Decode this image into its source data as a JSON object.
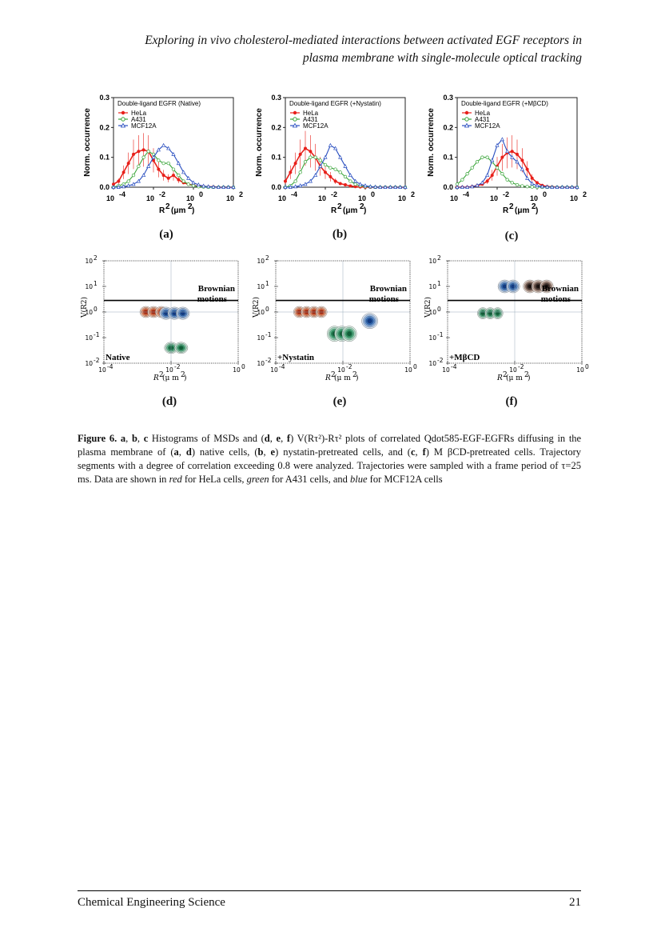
{
  "header": {
    "title_line1": "Exploring in vivo cholesterol-mediated interactions between activated EGF receptors in",
    "title_line2": "plasma membrane with single-molecule optical tracking"
  },
  "colors": {
    "hela": "#e8201a",
    "a431": "#3aa53a",
    "mcf12a": "#2a4fc0"
  },
  "histograms": [
    {
      "label": "(a)",
      "legend_title": "Double-ligand EGFR (Native)"
    },
    {
      "label": "(b)",
      "legend_title": "Double-ligand EGFR (+Nystatin)"
    },
    {
      "label": "(c)",
      "legend_title": "Double-ligand EGFR (+MβCD)"
    }
  ],
  "legend_entries": [
    "HeLa",
    "A431",
    "MCF12A"
  ],
  "hist_axes": {
    "ylabel": "Norm. occurrence",
    "xlabel": "R",
    "xlabel_sup": "2",
    "xlabel_unit": "(μm",
    "xlabel_unit_sup": "2",
    "xlabel_close": ")",
    "yticks": [
      "0.3",
      "0.2",
      "0.1",
      "0.0"
    ],
    "xtick_base": "10",
    "xtick_exps": [
      "-4",
      "-2",
      "0",
      "2"
    ]
  },
  "contours": [
    {
      "label": "(d)",
      "condition": "Native",
      "brownian_1": "Brownian",
      "brownian_2": "motions"
    },
    {
      "label": "(e)",
      "condition": "+Nystatin",
      "brownian_1": "Brownian",
      "brownian_2": "motions"
    },
    {
      "label": "(f)",
      "condition": "+MβCD",
      "brownian_1": "Brownian",
      "brownian_2": "motions"
    }
  ],
  "contour_axes": {
    "ylabel": "V(R",
    "ylabel_sup": "2",
    "ylabel_close": ")",
    "xlabel": "R",
    "xlabel_sup": "2",
    "xlabel_unit": "(μ m",
    "xlabel_unit_sup": "2",
    "xlabel_close": ")",
    "tick_base": "10",
    "ytick_exps": [
      "2",
      "1",
      "0",
      "-1",
      "-2"
    ],
    "xtick_exps": [
      "-4",
      "-2",
      "0"
    ]
  },
  "caption": {
    "fig_label": "Figure 6.",
    "a": "a",
    "b": "b",
    "c": "c",
    "d": "d",
    "e": "e",
    "f": "f",
    "part1": "Histograms of MSDs and (",
    "part2": ") V(Rτ²)-Rτ² plots of correlated Qdot585-EGF-EGFRs diffusing in the plasma membrane of (",
    "part3": ") native cells, (",
    "part4": ") nystatin-pretreated cells, and (",
    "part5": ") M βCD-pretreated cells. Trajectory segments with a degree of correlation exceeding 0.8 were analyzed. Trajectories were sampled with a frame period of τ=25 ms. Data are shown in",
    "red": "red",
    "part6": "for HeLa cells,",
    "green": "green",
    "part7": "for A431 cells, and",
    "blue": "blue",
    "part8": "for MCF12A cells"
  },
  "footer": {
    "journal": "Chemical Engineering Science",
    "page": "21"
  },
  "chart_data": [
    {
      "type": "line",
      "panel": "a",
      "title": "Double-ligand EGFR (Native)",
      "xlabel": "R2 (μm2)",
      "ylabel": "Norm. occurrence",
      "xscale": "log",
      "xlim": [
        0.0001,
        100
      ],
      "ylim": [
        0,
        0.3
      ],
      "x": [
        0.0001,
        0.00018,
        0.00032,
        0.00056,
        0.001,
        0.0018,
        0.0032,
        0.0056,
        0.01,
        0.018,
        0.032,
        0.056,
        0.1,
        0.18,
        0.32,
        0.56,
        1,
        1.8,
        3.2,
        5.6,
        10,
        18,
        32,
        56,
        100
      ],
      "series": [
        {
          "name": "HeLa",
          "values": [
            0.01,
            0.02,
            0.05,
            0.08,
            0.11,
            0.12,
            0.125,
            0.12,
            0.09,
            0.06,
            0.04,
            0.03,
            0.04,
            0.025,
            0.015,
            0.01,
            0.006,
            0.003,
            0.002,
            0.001,
            0.001,
            0,
            0,
            0,
            0
          ]
        },
        {
          "name": "A431",
          "values": [
            0,
            0.005,
            0.01,
            0.02,
            0.04,
            0.07,
            0.1,
            0.12,
            0.11,
            0.09,
            0.08,
            0.08,
            0.06,
            0.04,
            0.02,
            0.01,
            0.005,
            0.002,
            0.001,
            0,
            0,
            0,
            0,
            0,
            0
          ]
        },
        {
          "name": "MCF12A",
          "values": [
            0,
            0,
            0.002,
            0.005,
            0.01,
            0.02,
            0.04,
            0.07,
            0.1,
            0.125,
            0.14,
            0.13,
            0.11,
            0.08,
            0.05,
            0.03,
            0.015,
            0.008,
            0.004,
            0.002,
            0.001,
            0,
            0,
            0,
            0
          ]
        }
      ]
    },
    {
      "type": "line",
      "panel": "b",
      "title": "Double-ligand EGFR (+Nystatin)",
      "xlabel": "R2 (μm2)",
      "ylabel": "Norm. occurrence",
      "xscale": "log",
      "xlim": [
        0.0001,
        100
      ],
      "ylim": [
        0,
        0.3
      ],
      "x": [
        0.0001,
        0.00018,
        0.00032,
        0.00056,
        0.001,
        0.0018,
        0.0032,
        0.0056,
        0.01,
        0.018,
        0.032,
        0.056,
        0.1,
        0.18,
        0.32,
        0.56,
        1,
        1.8,
        3.2,
        5.6,
        10,
        18,
        32,
        56,
        100
      ],
      "series": [
        {
          "name": "HeLa",
          "values": [
            0.02,
            0.05,
            0.08,
            0.11,
            0.13,
            0.12,
            0.1,
            0.07,
            0.05,
            0.035,
            0.02,
            0.012,
            0.008,
            0.004,
            0.002,
            0.001,
            0,
            0,
            0,
            0,
            0,
            0,
            0,
            0,
            0
          ]
        },
        {
          "name": "A431",
          "values": [
            0,
            0.005,
            0.02,
            0.05,
            0.085,
            0.1,
            0.1,
            0.09,
            0.075,
            0.065,
            0.06,
            0.05,
            0.035,
            0.02,
            0.01,
            0.005,
            0.002,
            0.001,
            0,
            0,
            0,
            0,
            0,
            0,
            0
          ]
        },
        {
          "name": "MCF12A",
          "values": [
            0,
            0,
            0.002,
            0.005,
            0.01,
            0.02,
            0.04,
            0.07,
            0.1,
            0.14,
            0.13,
            0.1,
            0.07,
            0.04,
            0.02,
            0.01,
            0.005,
            0.002,
            0.001,
            0,
            0,
            0,
            0,
            0,
            0
          ]
        }
      ]
    },
    {
      "type": "line",
      "panel": "c",
      "title": "Double-ligand EGFR (+MβCD)",
      "xlabel": "R2 (μm2)",
      "ylabel": "Norm. occurrence",
      "xscale": "log",
      "xlim": [
        0.0001,
        100
      ],
      "ylim": [
        0,
        0.3
      ],
      "x": [
        0.0001,
        0.00018,
        0.00032,
        0.00056,
        0.001,
        0.0018,
        0.0032,
        0.0056,
        0.01,
        0.018,
        0.032,
        0.056,
        0.1,
        0.18,
        0.32,
        0.56,
        1,
        1.8,
        3.2,
        5.6,
        10,
        18,
        32,
        56,
        100
      ],
      "series": [
        {
          "name": "HeLa",
          "values": [
            0,
            0,
            0,
            0.002,
            0.005,
            0.01,
            0.02,
            0.04,
            0.07,
            0.1,
            0.115,
            0.12,
            0.11,
            0.09,
            0.06,
            0.03,
            0.015,
            0.006,
            0.002,
            0.001,
            0,
            0,
            0,
            0,
            0
          ]
        },
        {
          "name": "A431",
          "values": [
            0.01,
            0.025,
            0.045,
            0.065,
            0.085,
            0.1,
            0.1,
            0.085,
            0.065,
            0.045,
            0.025,
            0.015,
            0.008,
            0.004,
            0.002,
            0.001,
            0,
            0,
            0,
            0,
            0,
            0,
            0,
            0,
            0
          ]
        },
        {
          "name": "MCF12A",
          "values": [
            0,
            0,
            0,
            0.002,
            0.006,
            0.015,
            0.04,
            0.09,
            0.14,
            0.16,
            0.12,
            0.1,
            0.085,
            0.06,
            0.03,
            0.012,
            0.005,
            0.002,
            0.001,
            0,
            0,
            0,
            0,
            0,
            0
          ]
        }
      ]
    }
  ]
}
